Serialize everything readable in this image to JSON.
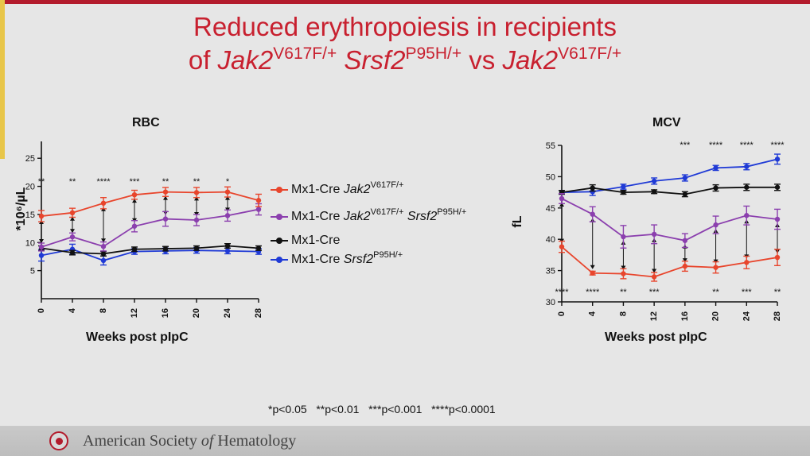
{
  "title": {
    "line1": "Reduced erythropoiesis in recipients",
    "line2_of": "of ",
    "line2_gene1": "Jak2",
    "line2_sup1": "V617F/+",
    "line2_gene2": "Srsf2",
    "line2_sup2": "P95H/+",
    "line2_vs": " vs ",
    "line2_gene3": "Jak2",
    "line2_sup3": "V617F/+"
  },
  "colors": {
    "red": "#e8452c",
    "purple": "#8b3fae",
    "black": "#111111",
    "blue": "#1f3ad6",
    "title": "#c8202f"
  },
  "legend": {
    "placement": "right-of-rbc-chart",
    "items": [
      {
        "prefix": "Mx1-Cre ",
        "gene": "Jak2",
        "sup": "V617F/+",
        "gene2": "",
        "sup2": "",
        "color": "#e8452c"
      },
      {
        "prefix": "Mx1-Cre ",
        "gene": "Jak2",
        "sup": "V617F/+",
        "gene2": " Srsf2",
        "sup2": "P95H/+",
        "color": "#8b3fae"
      },
      {
        "prefix": "Mx1-Cre",
        "gene": "",
        "sup": "",
        "gene2": "",
        "sup2": "",
        "color": "#111111"
      },
      {
        "prefix": "Mx1-Cre ",
        "gene": "Srsf2",
        "sup": "P95H/+",
        "gene2": "",
        "sup2": "",
        "color": "#1f3ad6"
      }
    ]
  },
  "chart_data": [
    {
      "type": "line",
      "title": "RBC",
      "xlabel": "Weeks post pIpC",
      "ylabel": "*10⁶/µL",
      "x": [
        0,
        4,
        8,
        12,
        16,
        20,
        24,
        28
      ],
      "xlim": [
        0,
        28
      ],
      "ylim": [
        0,
        28
      ],
      "yticks": [
        5,
        10,
        15,
        20,
        25
      ],
      "grid": false,
      "series": [
        {
          "color": "#e8452c",
          "values": [
            14.7,
            15.3,
            17.0,
            18.5,
            19.0,
            18.9,
            19.0,
            17.5
          ],
          "err": [
            1.0,
            0.8,
            1.0,
            0.8,
            0.8,
            0.9,
            0.9,
            1.1
          ]
        },
        {
          "color": "#8b3fae",
          "values": [
            9.2,
            11.0,
            9.3,
            12.9,
            14.2,
            14.0,
            14.8,
            15.9
          ],
          "err": [
            0.7,
            0.7,
            0.8,
            1.0,
            1.3,
            1.0,
            1.0,
            1.0
          ]
        },
        {
          "color": "#111111",
          "values": [
            9.0,
            8.2,
            8.0,
            8.8,
            8.9,
            9.0,
            9.4,
            9.0
          ],
          "err": [
            0.4,
            0.4,
            0.4,
            0.4,
            0.4,
            0.4,
            0.4,
            0.4
          ]
        },
        {
          "color": "#1f3ad6",
          "values": [
            7.7,
            8.8,
            6.8,
            8.4,
            8.5,
            8.6,
            8.5,
            8.4
          ],
          "err": [
            1.0,
            0.9,
            0.8,
            0.5,
            0.5,
            0.5,
            0.5,
            0.5
          ]
        }
      ],
      "annotations": {
        "top": [
          "**",
          "**",
          "****",
          "***",
          "**",
          "**",
          "*",
          ""
        ],
        "bottom": [
          "",
          "",
          "",
          "",
          "",
          "",
          "",
          ""
        ]
      }
    },
    {
      "type": "line",
      "title": "MCV",
      "xlabel": "Weeks post pIpC",
      "ylabel": "fL",
      "x": [
        0,
        4,
        8,
        12,
        16,
        20,
        24,
        28
      ],
      "xlim": [
        0,
        28
      ],
      "ylim": [
        30,
        55
      ],
      "yticks": [
        30,
        35,
        40,
        45,
        50,
        55
      ],
      "grid": false,
      "series": [
        {
          "color": "#e8452c",
          "values": [
            38.8,
            34.6,
            34.5,
            34.0,
            35.7,
            35.5,
            36.3,
            37.1
          ],
          "err": [
            0.9,
            0.3,
            0.8,
            0.7,
            0.8,
            0.9,
            1.0,
            1.3
          ]
        },
        {
          "color": "#8b3fae",
          "values": [
            46.5,
            44.0,
            40.4,
            40.8,
            39.8,
            42.3,
            43.8,
            43.2
          ],
          "err": [
            0.8,
            1.2,
            1.8,
            1.5,
            1.1,
            1.4,
            1.5,
            1.6
          ]
        },
        {
          "color": "#111111",
          "values": [
            47.5,
            48.2,
            47.5,
            47.6,
            47.2,
            48.2,
            48.3,
            48.3
          ],
          "err": [
            0.3,
            0.5,
            0.3,
            0.3,
            0.4,
            0.5,
            0.5,
            0.5
          ]
        },
        {
          "color": "#1f3ad6",
          "values": [
            47.5,
            47.6,
            48.4,
            49.3,
            49.8,
            51.4,
            51.6,
            52.8
          ],
          "err": [
            0.3,
            0.6,
            0.4,
            0.5,
            0.5,
            0.4,
            0.5,
            0.8
          ]
        }
      ],
      "annotations": {
        "top": [
          "",
          "",
          "",
          "",
          "***",
          "****",
          "****",
          "****"
        ],
        "bottom": [
          "****",
          "****",
          "**",
          "***",
          "",
          "**",
          "***",
          "**"
        ]
      }
    }
  ],
  "pvalues_note": "*p<0.05   **p<0.01   ***p<0.001   ****p<0.0001",
  "footer": {
    "pre": "American Society ",
    "of": "of",
    "post": " Hematology"
  }
}
